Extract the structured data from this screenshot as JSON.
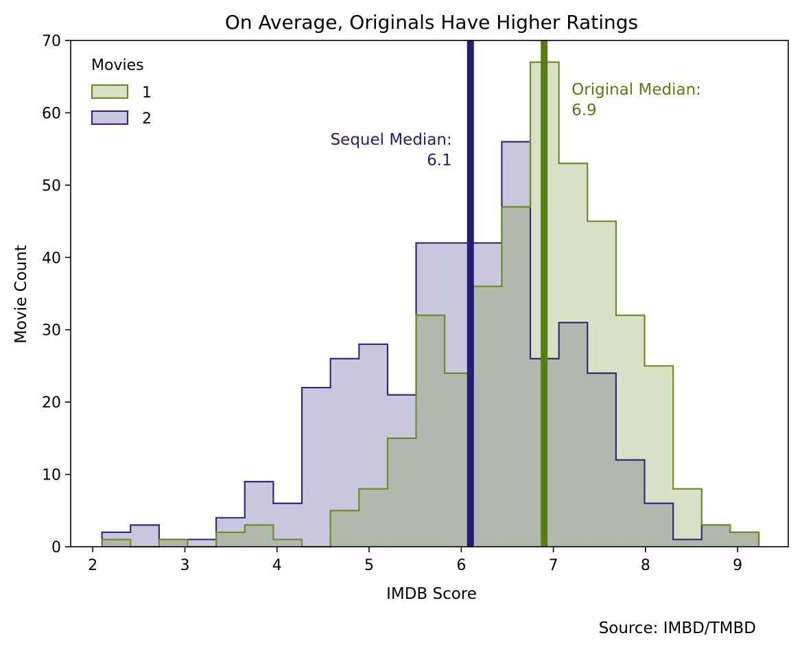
{
  "chart_data": {
    "type": "histogram",
    "title": "On Average, Originals Have Higher Ratings",
    "xlabel": "IMDB Score",
    "ylabel": "Movie Count",
    "xlim": [
      1.76,
      9.55
    ],
    "ylim": [
      0,
      70
    ],
    "xticks": [
      "2",
      "3",
      "4",
      "5",
      "6",
      "7",
      "8",
      "9"
    ],
    "yticks": [
      "0",
      "10",
      "20",
      "30",
      "40",
      "50",
      "60",
      "70"
    ],
    "grid": false,
    "legend": {
      "title": "Movies",
      "position": "top-left",
      "entries": [
        "1",
        "2"
      ]
    },
    "bin_edges": [
      2.1,
      2.41,
      2.72,
      3.03,
      3.34,
      3.65,
      3.96,
      4.27,
      4.58,
      4.89,
      5.2,
      5.51,
      5.82,
      6.13,
      6.44,
      6.75,
      7.06,
      7.37,
      7.68,
      7.99,
      8.3,
      8.61,
      8.92,
      9.23
    ],
    "series": [
      {
        "name": "1",
        "color": "#6b8e23",
        "counts": [
          1,
          0,
          1,
          0,
          2,
          3,
          1,
          0,
          5,
          8,
          15,
          32,
          24,
          36,
          47,
          67,
          53,
          45,
          32,
          25,
          8,
          3,
          2
        ]
      },
      {
        "name": "2",
        "color": "#2e2a7e",
        "counts": [
          2,
          3,
          1,
          1,
          4,
          9,
          6,
          22,
          26,
          28,
          21,
          42,
          42,
          42,
          56,
          26,
          31,
          24,
          12,
          6,
          1,
          3,
          2
        ]
      }
    ],
    "medians": [
      {
        "label": "Sequel Median:",
        "value_text": "6.1",
        "value": 6.1,
        "color": "#231d7a"
      },
      {
        "label": "Original Median:",
        "value_text": "6.9",
        "value": 6.9,
        "color": "#5a7a12"
      }
    ],
    "source": "Source: IMBD/TMBD"
  }
}
